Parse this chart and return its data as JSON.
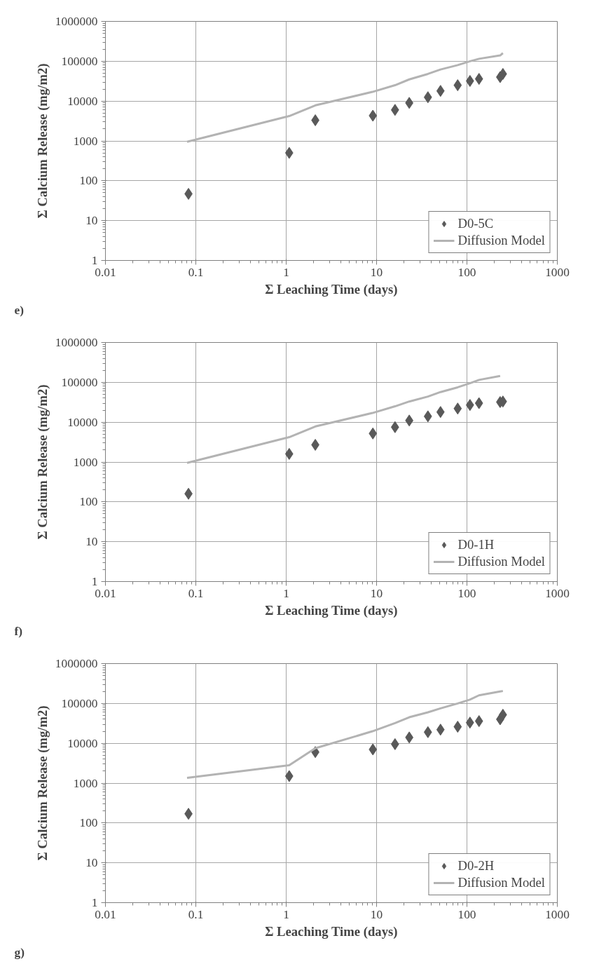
{
  "chart_data": [
    {
      "type": "scatter",
      "xlabel": "Σ Leaching Time (days)",
      "ylabel": "Σ Calcium Release (mg/m2)",
      "annotations": [
        "e)"
      ],
      "log": "xy",
      "grid": true,
      "legend": "bottom right",
      "xlim": [
        0.01,
        1000
      ],
      "ylim": [
        1,
        1000000
      ],
      "xticks": [
        0.01,
        0.1,
        1,
        10,
        100,
        1000
      ],
      "yticks": [
        1,
        10,
        100,
        1000,
        10000,
        100000,
        1000000
      ],
      "series": [
        {
          "name": "D0-5C",
          "marker": "diamond",
          "color": "#595959",
          "x": [
            0.083,
            1.08,
            2.1,
            9.1,
            16,
            23,
            37,
            51,
            79,
            108,
            136,
            233,
            250
          ],
          "values": [
            47,
            500,
            3300,
            4300,
            6000,
            9000,
            12500,
            18000,
            25000,
            32000,
            36000,
            40000,
            48000
          ]
        },
        {
          "name": "Diffusion Model",
          "type": "line",
          "line_style": "solid",
          "marker": "none",
          "color": "#b3b3b3",
          "x": [
            0.08,
            1.08,
            2.1,
            9,
            16,
            23,
            37,
            51,
            79,
            108,
            136,
            233,
            250
          ],
          "values": [
            950,
            4200,
            7800,
            17000,
            25000,
            35000,
            48000,
            62000,
            80000,
            100000,
            115000,
            140000,
            160000
          ]
        }
      ]
    },
    {
      "type": "scatter",
      "xlabel": "Σ Leaching Time (days)",
      "ylabel": "Σ Calcium Release (mg/m2)",
      "annotations": [
        "f)"
      ],
      "log": "xy",
      "grid": true,
      "legend": "bottom right",
      "xlim": [
        0.01,
        1000
      ],
      "ylim": [
        1,
        1000000
      ],
      "xticks": [
        0.01,
        0.1,
        1,
        10,
        100,
        1000
      ],
      "yticks": [
        1,
        10,
        100,
        1000,
        10000,
        100000,
        1000000
      ],
      "series": [
        {
          "name": "D0-1H",
          "marker": "diamond",
          "color": "#595959",
          "x": [
            0.083,
            1.08,
            2.1,
            9.1,
            16,
            23,
            37,
            51,
            79,
            108,
            136,
            233,
            250
          ],
          "values": [
            160,
            1600,
            2700,
            5200,
            7500,
            11000,
            14000,
            18000,
            22000,
            27000,
            30000,
            32000,
            33000
          ]
        },
        {
          "name": "Diffusion Model",
          "type": "line",
          "line_style": "solid",
          "marker": "none",
          "color": "#b3b3b3",
          "x": [
            0.08,
            1.08,
            2.1,
            9,
            16,
            23,
            37,
            51,
            79,
            108,
            136,
            233
          ],
          "values": [
            950,
            4200,
            7800,
            17000,
            25000,
            33000,
            44000,
            57000,
            75000,
            95000,
            115000,
            145000
          ]
        }
      ]
    },
    {
      "type": "scatter",
      "xlabel": "Σ Leaching Time (days)",
      "ylabel": "Σ Calcium Release (mg/m2)",
      "annotations": [
        "g)"
      ],
      "log": "xy",
      "grid": true,
      "legend": "bottom right",
      "xlim": [
        0.01,
        1000
      ],
      "ylim": [
        1,
        1000000
      ],
      "xticks": [
        0.01,
        0.1,
        1,
        10,
        100,
        1000
      ],
      "yticks": [
        1,
        10,
        100,
        1000,
        10000,
        100000,
        1000000
      ],
      "series": [
        {
          "name": "D0-2H",
          "marker": "diamond",
          "color": "#595959",
          "x": [
            0.083,
            1.08,
            2.1,
            9.1,
            16,
            23,
            37,
            51,
            79,
            108,
            136,
            233,
            250
          ],
          "values": [
            170,
            1500,
            6000,
            7000,
            9500,
            14000,
            19000,
            22000,
            26000,
            33000,
            36000,
            40000,
            52000
          ]
        },
        {
          "name": "Diffusion Model",
          "type": "line",
          "line_style": "solid",
          "marker": "none",
          "color": "#b3b3b3",
          "x": [
            0.08,
            1.08,
            2.1,
            9,
            16,
            23,
            37,
            51,
            79,
            108,
            136,
            233,
            250
          ],
          "values": [
            1350,
            2800,
            7500,
            20000,
            32000,
            45000,
            60000,
            75000,
            100000,
            125000,
            160000,
            200000,
            205000
          ]
        }
      ]
    }
  ]
}
